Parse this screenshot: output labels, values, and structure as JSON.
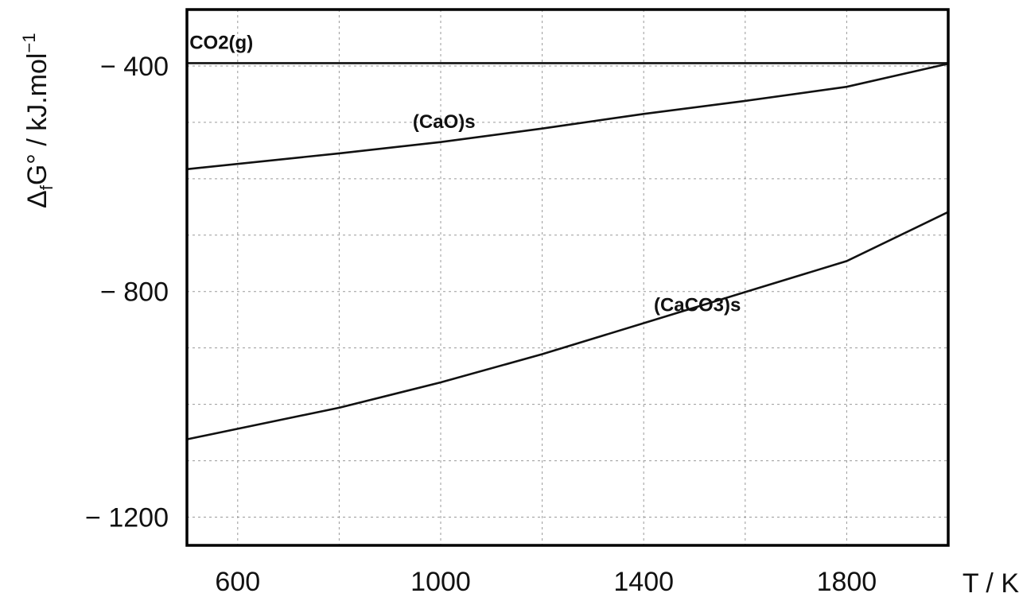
{
  "chart_data": {
    "type": "line",
    "title": "",
    "xlabel": "T / K",
    "ylabel": {
      "prefix": "Δ",
      "sub": "f",
      "main": "G° / kJ.mol",
      "sup": "−1"
    },
    "xlim": [
      500,
      2000
    ],
    "ylim": [
      -1250,
      -300
    ],
    "x_ticks": [
      600,
      1000,
      1400,
      1800
    ],
    "x_tick_labels": [
      "600",
      "1000",
      "1400",
      "1800"
    ],
    "y_ticks": [
      -400,
      -800,
      -1200
    ],
    "y_tick_labels": [
      "− 400",
      "− 800",
      "− 1200"
    ],
    "x_grid": [
      600,
      800,
      1000,
      1200,
      1400,
      1600,
      1800
    ],
    "y_grid": [
      -400,
      -500,
      -600,
      -700,
      -800,
      -900,
      -1000,
      -1100,
      -1200
    ],
    "grid": true,
    "series": [
      {
        "name": "CO2(g)",
        "x": [
          500,
          2000
        ],
        "y": [
          -395,
          -395
        ],
        "label_at": [
          505,
          -370
        ]
      },
      {
        "name": "(CaO)s",
        "x": [
          500,
          800,
          1000,
          1200,
          1400,
          1600,
          1800,
          2000
        ],
        "y": [
          -583,
          -555,
          -535,
          -511,
          -485,
          -462,
          -437,
          -396
        ],
        "label_at": [
          945,
          -510
        ]
      },
      {
        "name": "(CaCO3)s",
        "x": [
          500,
          800,
          1000,
          1200,
          1400,
          1600,
          1800,
          2000
        ],
        "y": [
          -1062,
          -1006,
          -961,
          -911,
          -856,
          -801,
          -746,
          -659
        ],
        "label_at": [
          1420,
          -835
        ]
      }
    ]
  }
}
